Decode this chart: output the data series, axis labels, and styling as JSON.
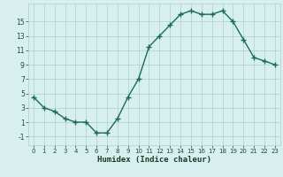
{
  "x": [
    0,
    1,
    2,
    3,
    4,
    5,
    6,
    7,
    8,
    9,
    10,
    11,
    12,
    13,
    14,
    15,
    16,
    17,
    18,
    19,
    20,
    21,
    22,
    23
  ],
  "y": [
    4.5,
    3.0,
    2.5,
    1.5,
    1.0,
    1.0,
    -0.5,
    -0.5,
    1.5,
    4.5,
    7.0,
    11.5,
    13.0,
    14.5,
    16.0,
    16.5,
    16.0,
    16.0,
    16.5,
    15.0,
    12.5,
    10.0,
    9.5,
    9.0
  ],
  "line_color": "#1a6b5a",
  "marker": "+",
  "bg_color": "#d7f0ef",
  "grid_color": "#aecece",
  "xlabel": "Humidex (Indice chaleur)",
  "ylim": [
    -2.2,
    17.5
  ],
  "xlim": [
    -0.5,
    23.5
  ],
  "yticks": [
    -1,
    1,
    3,
    5,
    7,
    9,
    11,
    13,
    15
  ],
  "xticks": [
    0,
    1,
    2,
    3,
    4,
    5,
    6,
    7,
    8,
    9,
    10,
    11,
    12,
    13,
    14,
    15,
    16,
    17,
    18,
    19,
    20,
    21,
    22,
    23
  ],
  "tick_color": "#1a4a3a",
  "xlabel_color": "#1a3a2a",
  "linewidth": 1.0,
  "markersize": 4.0,
  "markeredgewidth": 1.0
}
